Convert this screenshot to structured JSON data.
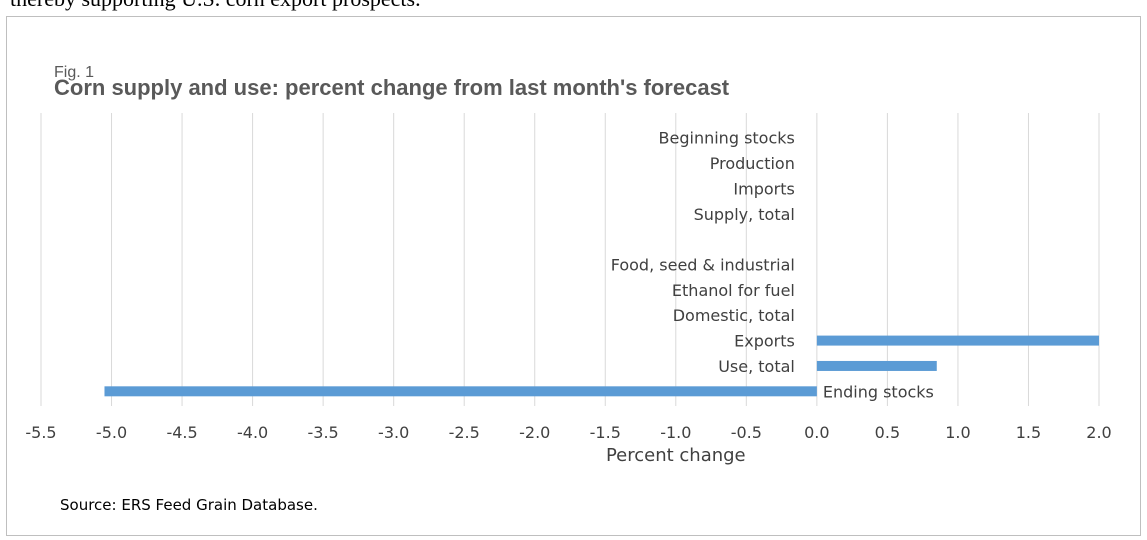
{
  "page": {
    "top_text": "thereby supporting U.S. corn export prospects.",
    "source": "Source: ERS Feed Grain Database."
  },
  "chart_data": {
    "type": "bar",
    "orientation": "horizontal",
    "fig_label": "Fig. 1",
    "title": "Corn supply and use: percent change from last month's forecast",
    "xlabel": "Percent change",
    "categories": [
      "Beginning stocks",
      "Production",
      "Imports",
      "Supply, total",
      "",
      "Food, seed & industrial",
      "Ethanol for fuel",
      "Domestic, total",
      "Exports",
      "Use, total",
      "Ending stocks"
    ],
    "values": [
      0,
      0,
      0,
      0,
      null,
      0,
      0,
      0,
      2.0,
      0.85,
      -5.05
    ],
    "xlim": [
      -5.5,
      2.0
    ],
    "xticks": [
      "-5.5",
      "-5.0",
      "-4.5",
      "-4.0",
      "-3.5",
      "-3.0",
      "-2.5",
      "-2.0",
      "-1.5",
      "-1.0",
      "-0.5",
      "0.0",
      "0.5",
      "1.0",
      "1.5",
      "2.0"
    ],
    "grid": true,
    "bar_color": "#5b9bd5",
    "grid_color": "#d9d9d9"
  }
}
